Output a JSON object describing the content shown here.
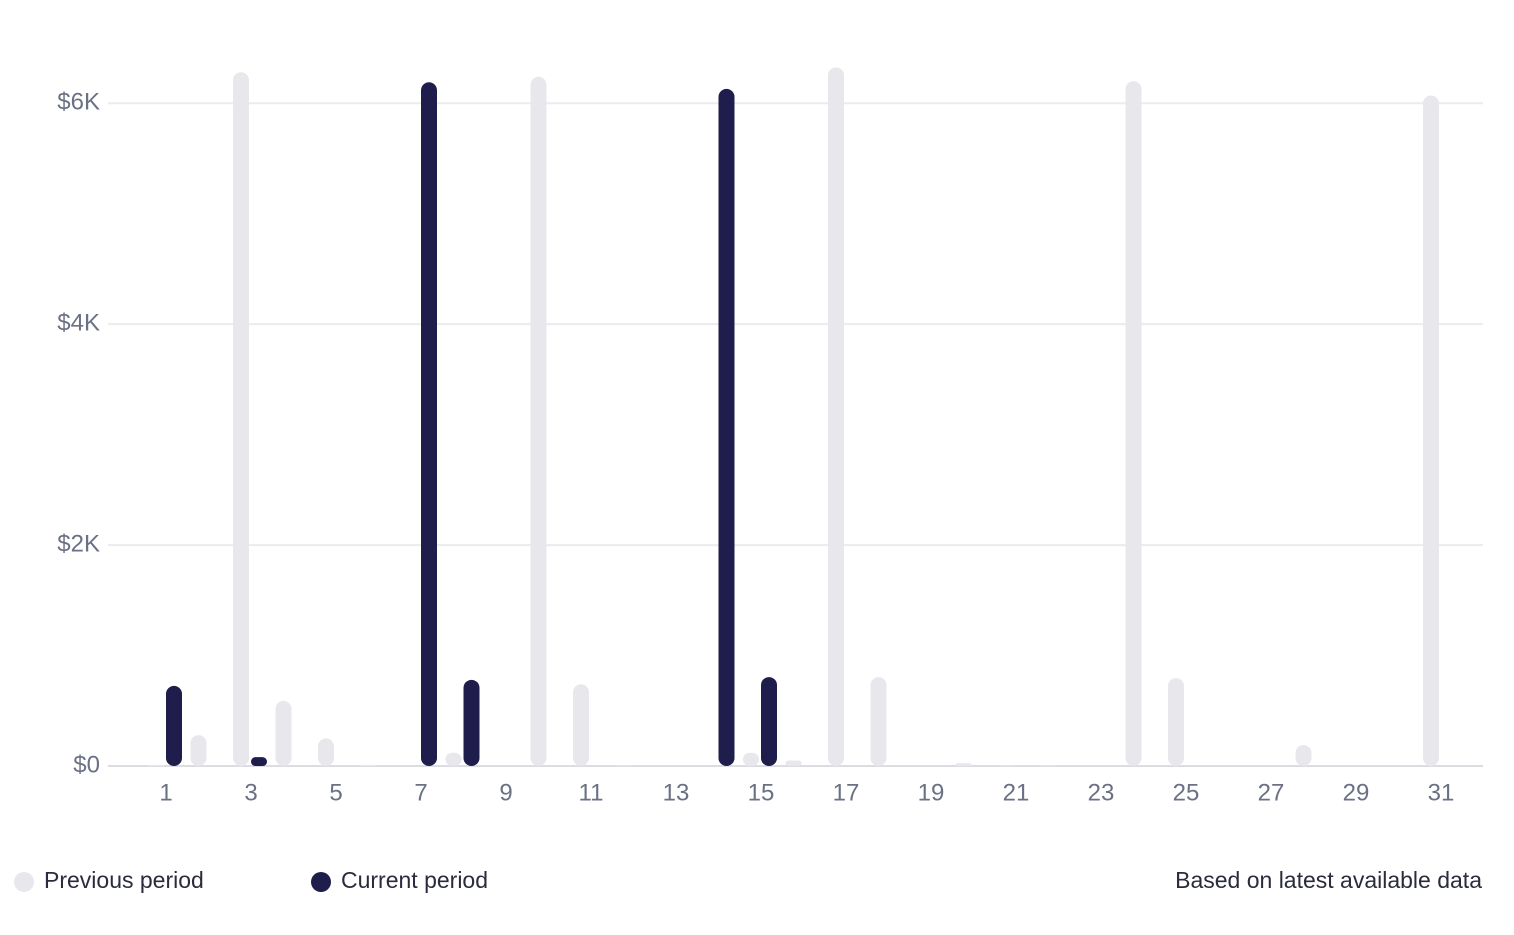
{
  "chart_data": {
    "type": "bar",
    "categories": [
      "1",
      null,
      "3",
      null,
      "5",
      null,
      "7",
      null,
      "9",
      null,
      "11",
      null,
      "13",
      null,
      "15",
      null,
      "17",
      null,
      "19",
      null,
      "21",
      null,
      "23",
      null,
      "25",
      null,
      "27",
      null,
      "29",
      null,
      "31"
    ],
    "series": [
      {
        "name": "Previous period",
        "color": "#e8e8ec",
        "values": [
          10,
          280,
          6280,
          590,
          250,
          10,
          0,
          120,
          0,
          6240,
          740,
          5,
          0,
          0,
          120,
          50,
          6325,
          805,
          0,
          25,
          5,
          5,
          0,
          6200,
          795,
          0,
          0,
          190,
          0,
          0,
          6070
        ]
      },
      {
        "name": "Current period",
        "color": "#1f1d4b",
        "values": [
          725,
          0,
          80,
          0,
          0,
          0,
          6190,
          780,
          0,
          0,
          0,
          0,
          0,
          6130,
          805,
          0,
          0,
          0,
          0,
          0,
          0,
          0,
          0,
          0,
          0,
          0,
          0,
          0,
          0,
          0,
          0
        ]
      }
    ],
    "ylim": [
      0,
      6500
    ],
    "yticks": [
      {
        "value": 0,
        "label": "$0"
      },
      {
        "value": 2000,
        "label": "$2K"
      },
      {
        "value": 4000,
        "label": "$4K"
      },
      {
        "value": 6000,
        "label": "$6K"
      }
    ],
    "grid": true,
    "note": "Based on latest available data"
  }
}
